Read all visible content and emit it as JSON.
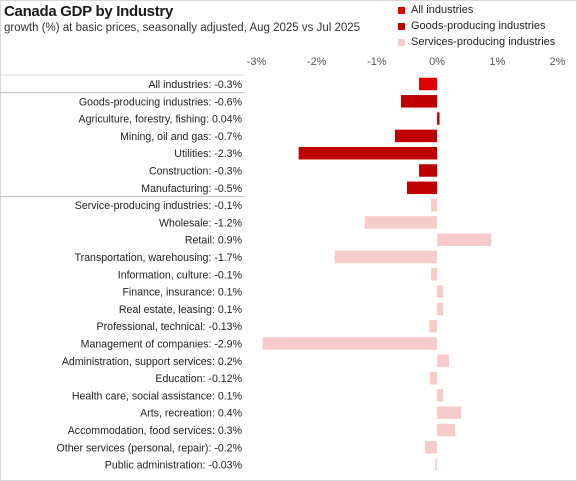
{
  "chart_data": {
    "type": "bar",
    "orientation": "horizontal",
    "title": "Canada GDP by Industry",
    "subtitle": "growth (%) at basic prices, seasonally  adjusted, Aug 2025 vs Jul 2025",
    "xlim": [
      -3,
      2
    ],
    "xticks": [
      -3,
      -2,
      -1,
      0,
      1,
      2
    ],
    "xtick_labels": [
      "-3%",
      "-2%",
      "-1%",
      "0%",
      "1%",
      "2%"
    ],
    "grid": false,
    "legend_position": "top-right",
    "legend": [
      {
        "name": "All industries",
        "color": "#e00000"
      },
      {
        "name": "Goods-producing industries",
        "color": "#c00000"
      },
      {
        "name": "Services-producing industries",
        "color": "#f8cbcb"
      }
    ],
    "categories": [
      {
        "label": "All industries: -0.3%",
        "value": -0.3,
        "group": 0
      },
      {
        "label": "Goods-producing industries: -0.6%",
        "value": -0.6,
        "group": 1
      },
      {
        "label": "Agriculture, forestry, fishing: 0.04%",
        "value": 0.04,
        "group": 1
      },
      {
        "label": "Mining, oil and gas: -0.7%",
        "value": -0.7,
        "group": 1
      },
      {
        "label": "Utilities: -2.3%",
        "value": -2.3,
        "group": 1
      },
      {
        "label": "Construction: -0.3%",
        "value": -0.3,
        "group": 1
      },
      {
        "label": "Manufacturing: -0.5%",
        "value": -0.5,
        "group": 1
      },
      {
        "label": "Service-producing industries: -0.1%",
        "value": -0.1,
        "group": 2
      },
      {
        "label": "Wholesale: -1.2%",
        "value": -1.2,
        "group": 2
      },
      {
        "label": "Retail: 0.9%",
        "value": 0.9,
        "group": 2
      },
      {
        "label": "Transportation, warehousing: -1.7%",
        "value": -1.7,
        "group": 2
      },
      {
        "label": "Information, culture: -0.1%",
        "value": -0.1,
        "group": 2
      },
      {
        "label": "Finance, insurance: 0.1%",
        "value": 0.1,
        "group": 2
      },
      {
        "label": "Real estate, leasing: 0.1%",
        "value": 0.1,
        "group": 2
      },
      {
        "label": "Professional, technical: -0.13%",
        "value": -0.13,
        "group": 2
      },
      {
        "label": "Management of companies: -2.9%",
        "value": -2.9,
        "group": 2
      },
      {
        "label": "Administration, support services: 0.2%",
        "value": 0.2,
        "group": 2
      },
      {
        "label": "Education: -0.12%",
        "value": -0.12,
        "group": 2
      },
      {
        "label": "Health care, social assistance: 0.1%",
        "value": 0.1,
        "group": 2
      },
      {
        "label": "Arts, recreation: 0.4%",
        "value": 0.4,
        "group": 2
      },
      {
        "label": "Accommodation, food services: 0.3%",
        "value": 0.3,
        "group": 2
      },
      {
        "label": "Other services (personal, repair): -0.2%",
        "value": -0.2,
        "group": 2
      },
      {
        "label": "Public administration: -0.03%",
        "value": -0.03,
        "group": 2
      }
    ]
  }
}
